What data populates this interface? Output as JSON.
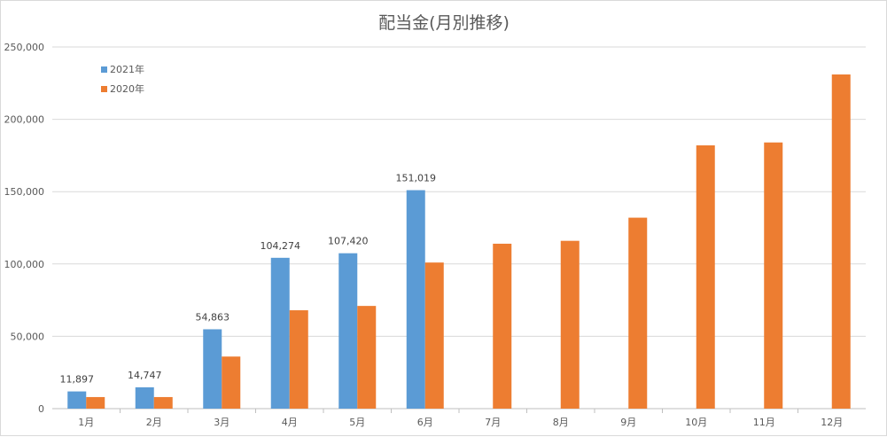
{
  "chart_data": {
    "type": "bar",
    "title": "配当金(月別推移)",
    "xlabel": "",
    "ylabel": "",
    "categories": [
      "1月",
      "2月",
      "3月",
      "4月",
      "5月",
      "6月",
      "7月",
      "8月",
      "9月",
      "10月",
      "11月",
      "12月"
    ],
    "series": [
      {
        "name": "2021年",
        "color": "#5b9bd5",
        "values": [
          11897,
          14747,
          54863,
          104274,
          107420,
          151019,
          null,
          null,
          null,
          null,
          null,
          null
        ],
        "labels": [
          "11,897",
          "14,747",
          "54,863",
          "104,274",
          "107,420",
          "151,019"
        ]
      },
      {
        "name": "2020年",
        "color": "#ed7d31",
        "values": [
          8000,
          8000,
          36000,
          68000,
          71000,
          101000,
          114000,
          116000,
          132000,
          182000,
          184000,
          231000
        ]
      }
    ],
    "ylim": [
      0,
      250000
    ],
    "yticks": [
      0,
      50000,
      100000,
      150000,
      200000,
      250000
    ],
    "ytick_labels": [
      "0",
      "50,000",
      "100,000",
      "150,000",
      "200,000",
      "250,000"
    ],
    "grid": true,
    "legend_position": "top-left"
  }
}
